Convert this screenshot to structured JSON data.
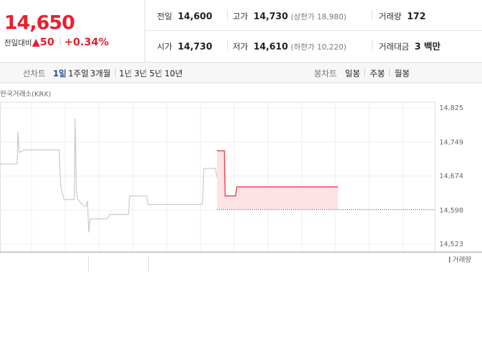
{
  "quote": {
    "price": "14,650",
    "change_label": "전일대비",
    "change": "50",
    "change_pct": "+0.34%"
  },
  "stats": [
    {
      "label": "전일",
      "value": "14,600"
    },
    {
      "label": "고가",
      "value": "14,730",
      "note": "(상한가 18,980)"
    },
    {
      "label": "거래량",
      "value": "172"
    },
    {
      "label": "시가",
      "value": "14,730"
    },
    {
      "label": "저가",
      "value": "14,610",
      "note": "(하한가 10,220)"
    },
    {
      "label": "거래대금",
      "value": "3 백만"
    }
  ],
  "tabs": {
    "line_label": "선차트",
    "line": [
      "1일",
      "1주일",
      "3개월",
      "1년",
      "3년",
      "5년",
      "10년"
    ],
    "candle_label": "봉차트",
    "candle": [
      "일봉",
      "주봉",
      "월봉"
    ]
  },
  "chart_data": {
    "type": "line",
    "source": "한국거래소(KRX)",
    "volume_label": "거래량",
    "xlim": [
      0,
      632
    ],
    "ylim": [
      14523,
      14825
    ],
    "yticks": [
      {
        "value": 14523,
        "label": "14,523"
      },
      {
        "value": 14598,
        "label": "14,598"
      },
      {
        "value": 14674,
        "label": "14,674"
      },
      {
        "value": 14749,
        "label": "14,749"
      },
      {
        "value": 14825,
        "label": "14,825"
      }
    ],
    "baseline": 14600,
    "series": [
      {
        "color": "#c8c8c8",
        "x": [
          0,
          25,
          26,
          28,
          35,
          86,
          88,
          90,
          93,
          108,
          109,
          111,
          113,
          122,
          125,
          127,
          129,
          131,
          155,
          160,
          187,
          188,
          213,
          215,
          294,
          296,
          313,
          315
        ],
        "values": [
          14701,
          14701,
          14772,
          14726,
          14732,
          14732,
          14653,
          14640,
          14622,
          14622,
          14802,
          14640,
          14622,
          14607,
          14607,
          14619,
          14549,
          14579,
          14579,
          14589,
          14589,
          14630,
          14630,
          14611,
          14611,
          14691,
          14691,
          14671
        ]
      },
      {
        "color": "#e8212e",
        "fill": "#fde3e5",
        "x": [
          315,
          326,
          327,
          342,
          344,
          491
        ],
        "values": [
          14730,
          14730,
          14630,
          14630,
          14650,
          14650
        ]
      }
    ]
  }
}
